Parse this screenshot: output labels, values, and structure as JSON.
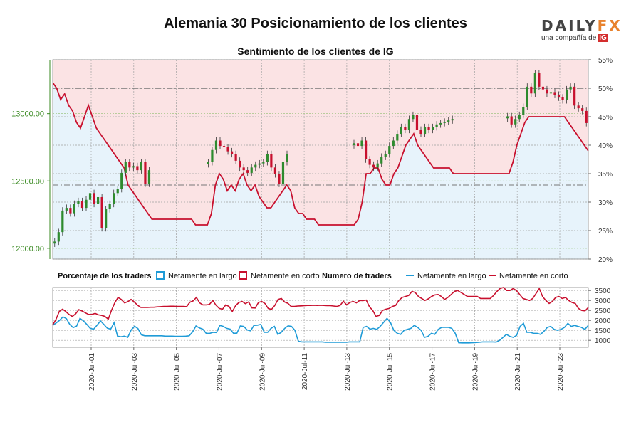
{
  "header": {
    "title": "Alemania 30 Posicionamiento de los clientes",
    "subtitle": "Sentimiento de los clientes de IG",
    "logo_main_left": "DAILY",
    "logo_main_right": "FX",
    "logo_sub": "una compañía de",
    "logo_badge": "IG"
  },
  "legend": {
    "pct_title": "Porcentaje de los traders",
    "net_long": "Netamente en largo",
    "net_short": "Netamente en corto",
    "num_title": "Numero de traders",
    "net_long_2": "Netamente en largo",
    "net_short_2": "Netamente en corto"
  },
  "colors": {
    "long_line": "#1f9bd7",
    "short_line": "#c8102e",
    "long_fill": "#e7f3fb",
    "short_fill": "#fbe3e4",
    "up_candle": "#2e8b2e",
    "down_candle": "#c8102e",
    "price_axis": "#3a8a22"
  },
  "chart_data": [
    {
      "type": "candlestick",
      "name": "price",
      "y_ticks": [
        "12000.00",
        "12500.00",
        "13000.00"
      ],
      "y_tick_values": [
        12000,
        12500,
        13000
      ],
      "ylim": [
        11920,
        13400
      ],
      "right_ticks": [
        "20%",
        "25%",
        "30%",
        "35%",
        "40%",
        "45%",
        "50%",
        "55%"
      ],
      "right_tick_values": [
        20,
        25,
        30,
        35,
        40,
        45,
        50,
        55
      ],
      "right_lim": [
        20,
        55
      ],
      "ref_line_upper_pct": 50,
      "ref_line_lower_pct": 33,
      "x_labels": [
        "2020-Jul-01",
        "2020-Jul-03",
        "2020-Jul-05",
        "2020-Jul-07",
        "2020-Jul-09",
        "2020-Jul-11",
        "2020-Jul-13",
        "2020-Jul-15",
        "2020-Jul-17",
        "2020-Jul-19",
        "2020-Jul-21",
        "2020-Jul-23"
      ],
      "close": [
        12050,
        12120,
        12280,
        12300,
        12260,
        12330,
        12350,
        12300,
        12360,
        12410,
        12330,
        12380,
        12150,
        12290,
        12330,
        12410,
        12440,
        12560,
        12640,
        12600,
        12610,
        12580,
        12640,
        12480,
        12580,
        null,
        null,
        null,
        null,
        null,
        null,
        null,
        null,
        null,
        null,
        null,
        null,
        null,
        null,
        12640,
        12730,
        12800,
        12760,
        12750,
        12720,
        12700,
        12650,
        12600,
        12580,
        12560,
        12600,
        12620,
        12630,
        12640,
        12700,
        12600,
        12550,
        12480,
        12640,
        12700,
        null,
        null,
        null,
        null,
        null,
        null,
        null,
        null,
        null,
        null,
        null,
        null,
        null,
        null,
        null,
        null,
        12780,
        12760,
        12800,
        12660,
        12620,
        12600,
        12630,
        12680,
        12700,
        12760,
        12800,
        12850,
        12900,
        12880,
        12960,
        12990,
        12880,
        12850,
        12900,
        12880,
        12900,
        12920,
        12930,
        12940,
        12950,
        12960,
        null,
        null,
        null,
        null,
        null,
        null,
        null,
        null,
        null,
        null,
        null,
        null,
        null,
        12980,
        12920,
        12960,
        12990,
        13050,
        13200,
        13150,
        13300,
        13200,
        13180,
        13150,
        13160,
        13140,
        13120,
        13100,
        13180,
        13200,
        13060,
        13040,
        13020,
        12930
      ],
      "long_pct": [
        51,
        50,
        48,
        49,
        47,
        46,
        44,
        43,
        45,
        47,
        45,
        43,
        42,
        41,
        40,
        39,
        38,
        37,
        36,
        33,
        32,
        31,
        30,
        29,
        28,
        27,
        27,
        27,
        27,
        27,
        27,
        27,
        27,
        27,
        27,
        27,
        26,
        26,
        26,
        26,
        28,
        33,
        35,
        34,
        32,
        33,
        32,
        34,
        35,
        33,
        32,
        33,
        31,
        30,
        29,
        29,
        30,
        31,
        32,
        33,
        32,
        29,
        28,
        28,
        27,
        27,
        27,
        26,
        26,
        26,
        26,
        26,
        26,
        26,
        26,
        26,
        26,
        27,
        30,
        35,
        35,
        36,
        36,
        34,
        33,
        33,
        35,
        36,
        38,
        40,
        41,
        42,
        40,
        39,
        38,
        37,
        36,
        36,
        36,
        36,
        36,
        35,
        35,
        35,
        35,
        35,
        35,
        35,
        35,
        35,
        35,
        35,
        35,
        35,
        35,
        35,
        37,
        40,
        42,
        44,
        45,
        45,
        45,
        45,
        45,
        45,
        45,
        45,
        45,
        45,
        44,
        43,
        42,
        41,
        40,
        39
      ],
      "short_pct": [
        49,
        50,
        52,
        51,
        53,
        54,
        56,
        57,
        55,
        53,
        55,
        57,
        58,
        59,
        60,
        61,
        62,
        63,
        64,
        67,
        68,
        69,
        70,
        71,
        72,
        73,
        73,
        73,
        73,
        73,
        73,
        73,
        73,
        73,
        73,
        73,
        74,
        74,
        74,
        74,
        72,
        67,
        65,
        66,
        68,
        67,
        68,
        66,
        65,
        67,
        68,
        67,
        69,
        70,
        71,
        71,
        70,
        69,
        68,
        67,
        68,
        71,
        72,
        72,
        73,
        73,
        73,
        74,
        74,
        74,
        74,
        74,
        74,
        74,
        74,
        74,
        74,
        73,
        70,
        65,
        65,
        64,
        64,
        66,
        67,
        67,
        65,
        64,
        62,
        60,
        59,
        58,
        60,
        61,
        62,
        63,
        64,
        64,
        64,
        64,
        64,
        65,
        65,
        65,
        65,
        65,
        65,
        65,
        65,
        65,
        65,
        65,
        65,
        65,
        65,
        65,
        63,
        60,
        58,
        56,
        55,
        55,
        55,
        55,
        55,
        55,
        55,
        55,
        55,
        55,
        56,
        57,
        58,
        59,
        60,
        61
      ]
    },
    {
      "type": "line",
      "name": "traders",
      "y_ticks": [
        "1000",
        "1500",
        "2000",
        "2500",
        "3000",
        "3500"
      ],
      "y_tick_values": [
        1000,
        1500,
        2000,
        2500,
        3000,
        3500
      ],
      "ylim": [
        650,
        3650
      ],
      "series": [
        {
          "name": "Netamente en largo",
          "values": [
            1750,
            1870,
            2000,
            2180,
            2090,
            1800,
            1640,
            1710,
            2100,
            1980,
            1800,
            1600,
            1560,
            1760,
            1970,
            1800,
            1610,
            1560,
            1890,
            1210,
            1180,
            1210,
            1150,
            1520,
            1710,
            1590,
            1280,
            1230,
            1230,
            1230,
            1230,
            1230,
            1230,
            1210,
            1210,
            1210,
            1200,
            1200,
            1200,
            1210,
            1230,
            1420,
            1720,
            1620,
            1560,
            1350,
            1350,
            1400,
            1390,
            1750,
            1700,
            1600,
            1560,
            1350,
            1360,
            1720,
            1700,
            1520,
            1480,
            1750,
            1760,
            1800,
            1400,
            1400,
            1600,
            1700,
            1300,
            1400,
            1600,
            1730,
            1700,
            1500,
            950,
            920,
            920,
            920,
            920,
            920,
            920,
            920,
            900,
            900,
            900,
            900,
            900,
            900,
            900,
            920,
            920,
            920,
            920,
            1650,
            1700,
            1560,
            1600,
            1550,
            1700,
            1900,
            2100,
            1900,
            1500,
            1350,
            1300,
            1500,
            1550,
            1600,
            1750,
            1650,
            1500,
            1150,
            1200,
            1350,
            1300,
            1550,
            1650,
            1650,
            1650,
            1600,
            1350,
            880,
            870,
            870,
            870,
            880,
            890,
            900,
            920,
            920,
            920,
            920,
            910,
            1000,
            1150,
            1300,
            1200,
            1150,
            1250,
            1700,
            1850,
            1400,
            1400,
            1350,
            1350,
            1300,
            1450,
            1650,
            1700,
            1550,
            1500,
            1550,
            1650,
            1850,
            1700,
            1750,
            1700,
            1650,
            1550,
            1750
          ]
        },
        {
          "name": "Netamente en corto",
          "values": [
            1780,
            2050,
            2450,
            2560,
            2450,
            2300,
            2200,
            2330,
            2540,
            2470,
            2380,
            2300,
            2300,
            2350,
            2280,
            2250,
            2200,
            2060,
            2500,
            2880,
            3150,
            3050,
            2880,
            2940,
            3050,
            2920,
            2760,
            2650,
            2650,
            2650,
            2660,
            2660,
            2680,
            2690,
            2700,
            2700,
            2710,
            2710,
            2700,
            2700,
            2700,
            2690,
            2910,
            2980,
            3150,
            2880,
            2780,
            2780,
            2800,
            3000,
            2760,
            2600,
            2560,
            2780,
            2700,
            2450,
            2740,
            2900,
            2950,
            2840,
            2930,
            2630,
            2620,
            2900,
            2950,
            2850,
            2600,
            2550,
            2750,
            3050,
            3100,
            2920,
            2860,
            2700,
            2700,
            2720,
            2730,
            2740,
            2750,
            2750,
            2760,
            2750,
            2760,
            2750,
            2740,
            2740,
            2720,
            2700,
            2750,
            2960,
            2780,
            2900,
            2950,
            2880,
            3000,
            2990,
            3020,
            2680,
            2500,
            2200,
            2250,
            2500,
            2560,
            2600,
            2700,
            2750,
            3000,
            3150,
            3200,
            3250,
            3450,
            3400,
            3200,
            3100,
            3000,
            3080,
            3200,
            3280,
            3300,
            3200,
            3050,
            3150,
            3300,
            3450,
            3500,
            3400,
            3300,
            3200,
            3200,
            3200,
            3200,
            3100,
            3100,
            3100,
            3100,
            3250,
            3450,
            3600,
            3650,
            3500,
            3500,
            3600,
            3500,
            3300,
            3100,
            3050,
            3000,
            3100,
            3350,
            3600,
            3200,
            3000,
            2850,
            2950,
            3150,
            3200,
            3100,
            3150,
            3000,
            2900,
            2850,
            2600,
            2500,
            2480,
            2650
          ]
        }
      ]
    }
  ]
}
